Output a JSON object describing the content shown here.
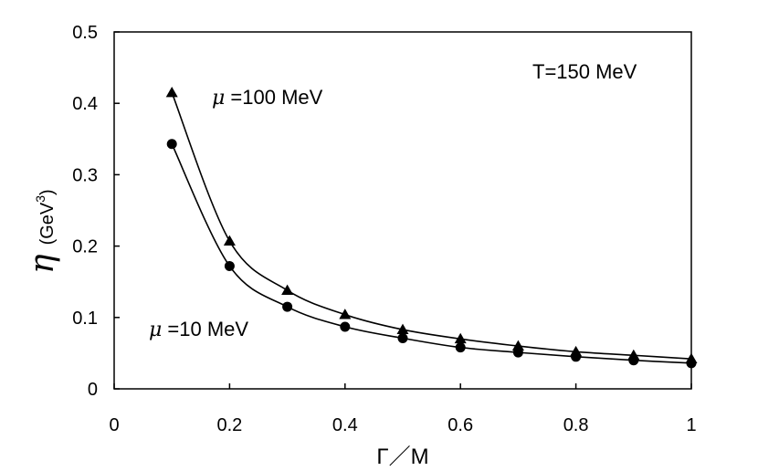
{
  "chart_data": {
    "type": "line",
    "title": "",
    "xlabel": "Γ／M",
    "ylabel_symbol": "η",
    "ylabel_unit": "(GeV",
    "ylabel_unit_exp": "3",
    "ylabel_unit_close": ")",
    "xlim": [
      0,
      1
    ],
    "ylim": [
      0,
      0.5
    ],
    "x_ticks": [
      0,
      0.2,
      0.4,
      0.6,
      0.8,
      1
    ],
    "x_tick_labels": [
      "0",
      "0.2",
      "0.4",
      "0.6",
      "0.8",
      "1"
    ],
    "y_ticks": [
      0,
      0.1,
      0.2,
      0.3,
      0.4,
      0.5
    ],
    "y_tick_labels": [
      "0",
      "0.1",
      "0.2",
      "0.3",
      "0.4",
      "0.5"
    ],
    "grid": false,
    "x": [
      0.1,
      0.2,
      0.3,
      0.4,
      0.5,
      0.6,
      0.7,
      0.8,
      0.9,
      1.0
    ],
    "series": [
      {
        "name": "μ =100 MeV",
        "symbol": "μ",
        "label_rest": " =100 MeV",
        "marker": "triangle",
        "values": [
          0.415,
          0.207,
          0.138,
          0.104,
          0.083,
          0.07,
          0.06,
          0.052,
          0.047,
          0.042
        ]
      },
      {
        "name": "μ =10 MeV",
        "symbol": "μ",
        "label_rest": " =10 MeV",
        "marker": "circle",
        "values": [
          0.343,
          0.172,
          0.115,
          0.087,
          0.071,
          0.058,
          0.051,
          0.045,
          0.04,
          0.036
        ]
      }
    ],
    "annotations": [
      {
        "text": "T=150 MeV"
      }
    ]
  }
}
